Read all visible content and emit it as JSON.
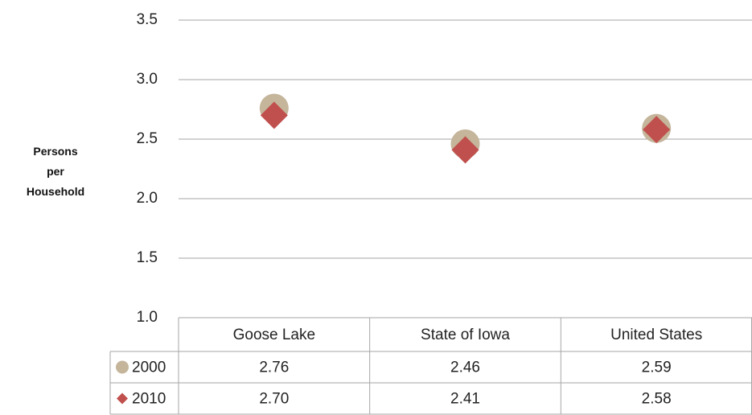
{
  "chart_data": {
    "type": "scatter",
    "y_label": "Persons per Household",
    "categories": [
      "Goose Lake",
      "State of Iowa",
      "United States"
    ],
    "series": [
      {
        "name": "2000",
        "color": "#c4b59b",
        "marker": "circle",
        "values": [
          2.76,
          2.46,
          2.59
        ],
        "value_labels": [
          "2.76",
          "2.46",
          "2.59"
        ]
      },
      {
        "name": "2010",
        "color": "#c0504d",
        "marker": "diamond",
        "values": [
          2.7,
          2.41,
          2.58
        ],
        "value_labels": [
          "2.70",
          "2.41",
          "2.58"
        ]
      }
    ],
    "ylim": [
      1,
      3.5
    ],
    "yticks": [
      {
        "value": 1,
        "label": "1.0"
      },
      1.5,
      {
        "value": 2,
        "label": "2.0"
      },
      2.5,
      {
        "value": 3,
        "label": "3.0"
      },
      3.5
    ],
    "grid": true
  }
}
